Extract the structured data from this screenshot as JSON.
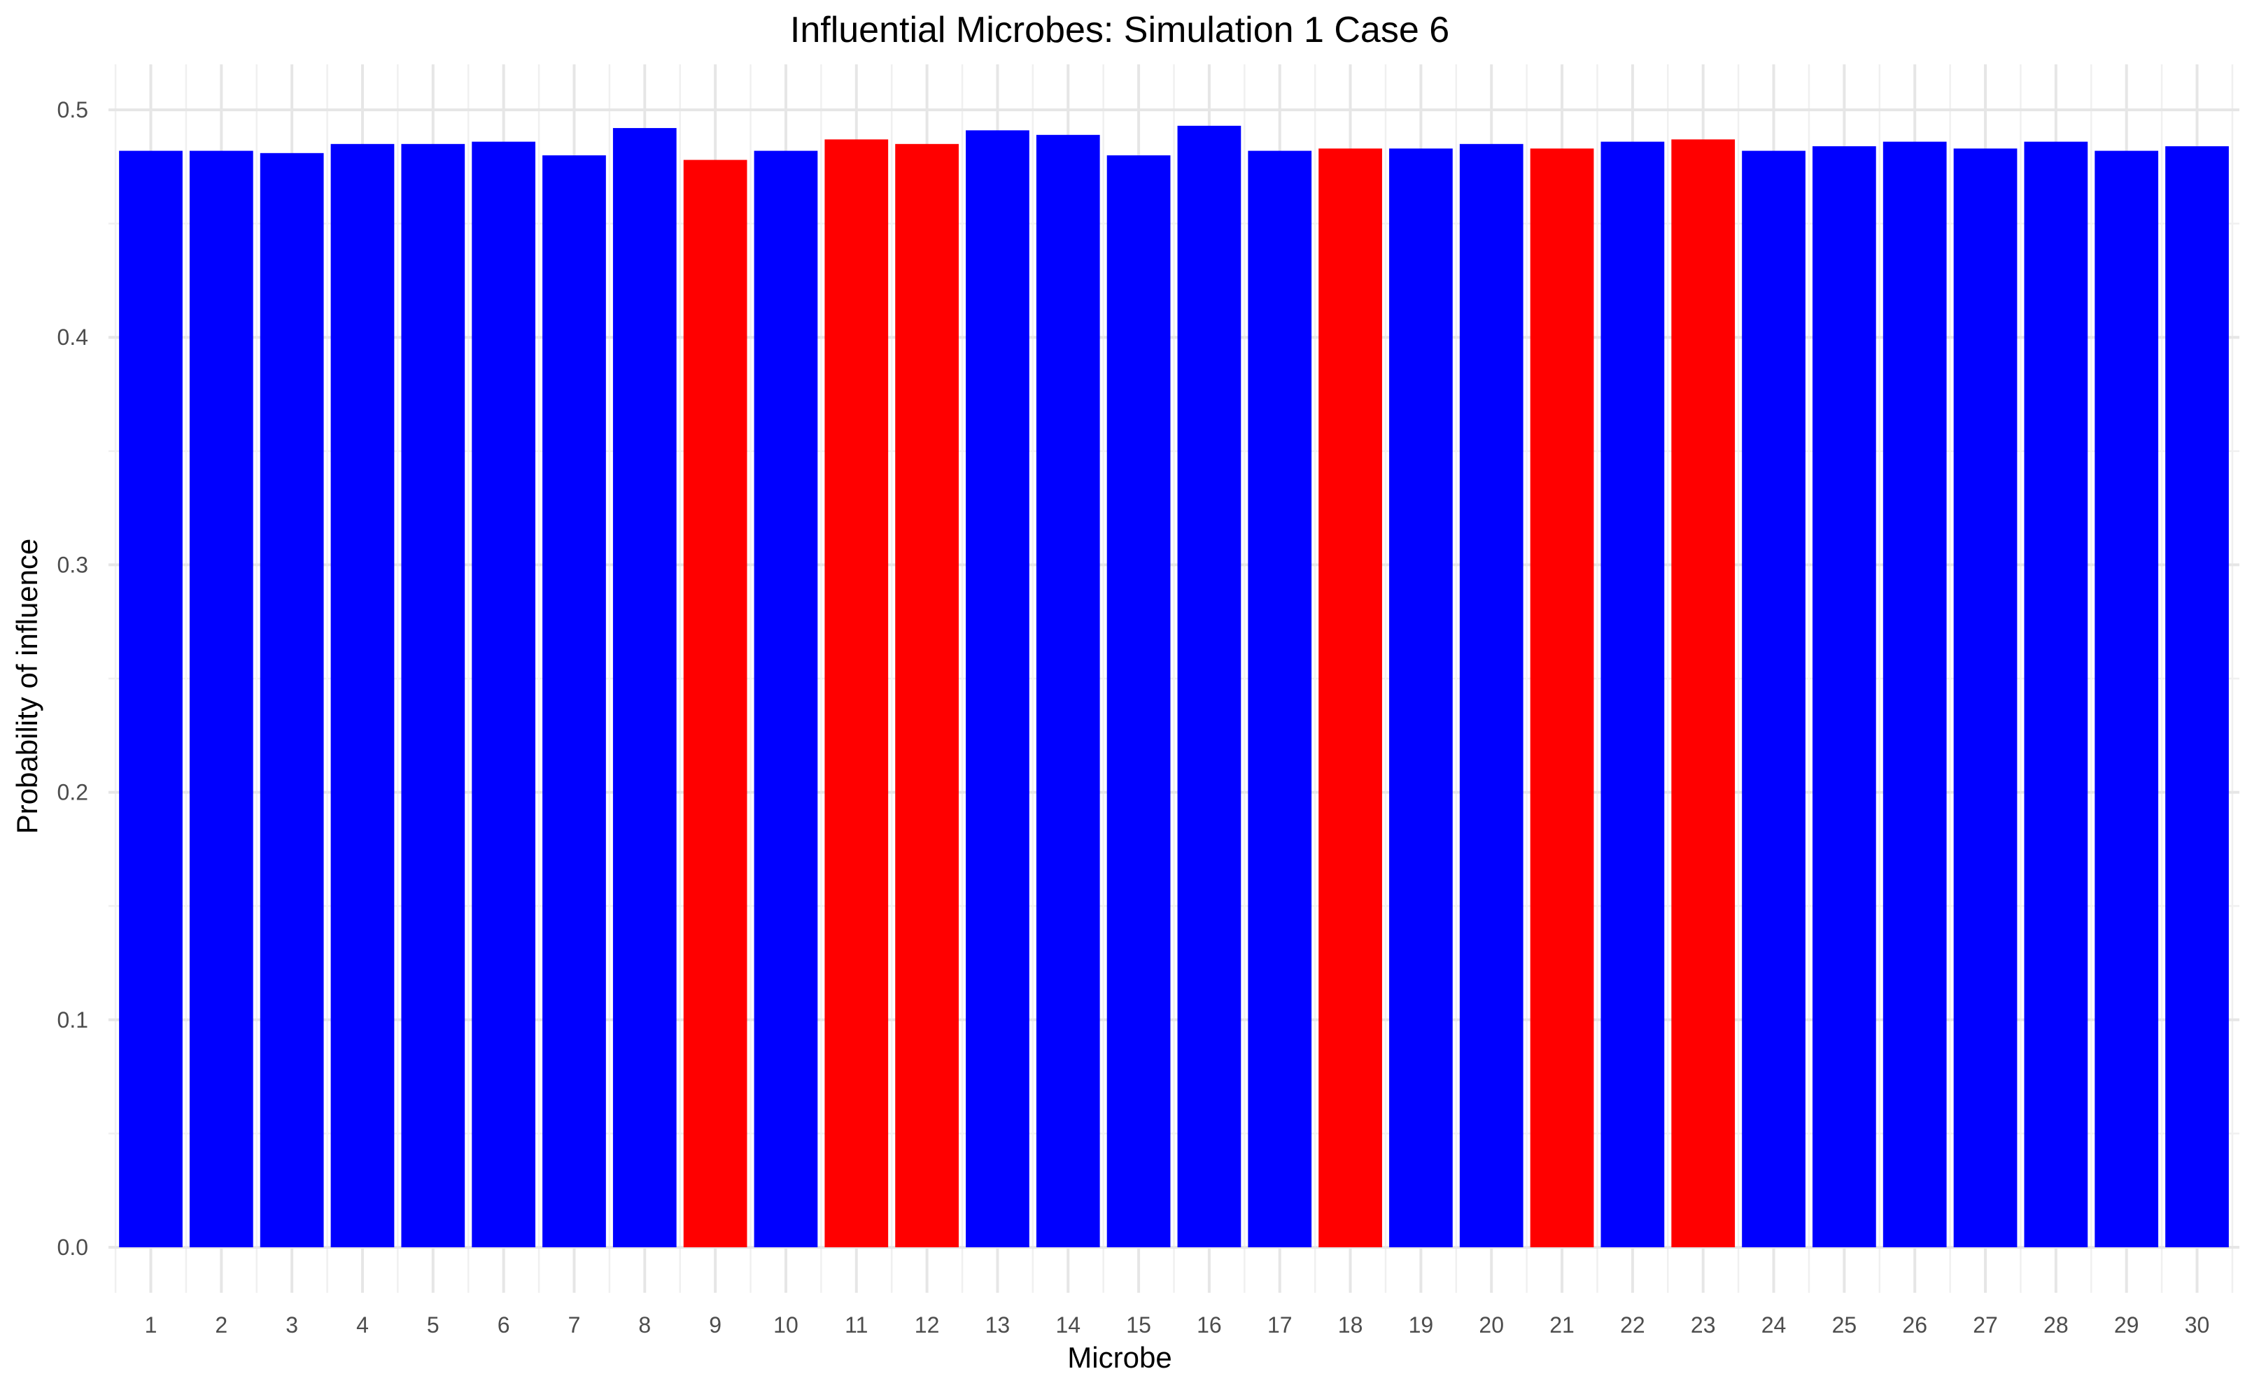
{
  "chart_data": {
    "type": "bar",
    "title": "Influential Microbes: Simulation 1 Case 6",
    "xlabel": "Microbe",
    "ylabel": "Probability of influence",
    "ylim": [
      -0.02,
      0.52
    ],
    "yticks": [
      0.0,
      0.1,
      0.2,
      0.3,
      0.4,
      0.5
    ],
    "ytick_labels": [
      "0.0",
      "0.1",
      "0.2",
      "0.3",
      "0.4",
      "0.5"
    ],
    "categories": [
      "1",
      "2",
      "3",
      "4",
      "5",
      "6",
      "7",
      "8",
      "9",
      "10",
      "11",
      "12",
      "13",
      "14",
      "15",
      "16",
      "17",
      "18",
      "19",
      "20",
      "21",
      "22",
      "23",
      "24",
      "25",
      "26",
      "27",
      "28",
      "29",
      "30"
    ],
    "values": [
      0.482,
      0.482,
      0.481,
      0.485,
      0.485,
      0.486,
      0.48,
      0.492,
      0.478,
      0.482,
      0.487,
      0.485,
      0.491,
      0.489,
      0.48,
      0.493,
      0.482,
      0.483,
      0.483,
      0.485,
      0.483,
      0.486,
      0.487,
      0.482,
      0.484,
      0.486,
      0.483,
      0.486,
      0.482,
      0.484
    ],
    "bar_groups": [
      "blue",
      "blue",
      "blue",
      "blue",
      "blue",
      "blue",
      "blue",
      "blue",
      "red",
      "blue",
      "red",
      "red",
      "blue",
      "blue",
      "blue",
      "blue",
      "blue",
      "red",
      "blue",
      "blue",
      "red",
      "blue",
      "red",
      "blue",
      "blue",
      "blue",
      "blue",
      "blue",
      "blue",
      "blue"
    ],
    "colors": {
      "blue": "#0000FF",
      "red": "#FF0000"
    },
    "grid": true,
    "legend": "none"
  }
}
